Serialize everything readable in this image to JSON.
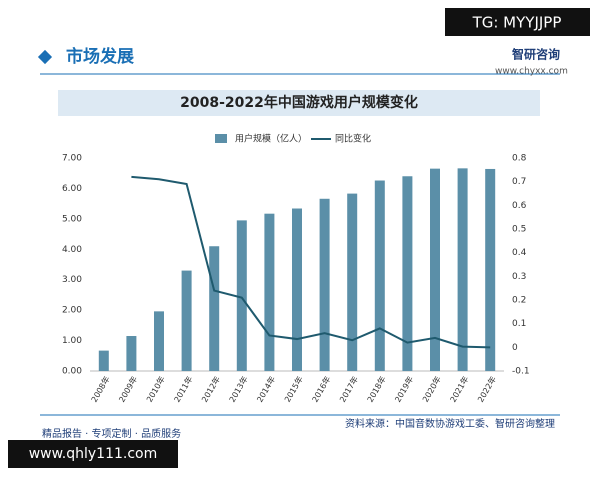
{
  "badge": "TG: MYYJJPP",
  "header": {
    "section": "市场发展",
    "brand": "智研咨询",
    "url": "www.chyxx.com"
  },
  "chart_data": {
    "type": "bar-line",
    "title": "2008-2022年中国游戏用户规模变化",
    "categories": [
      "2008年",
      "2009年",
      "2010年",
      "2011年",
      "2012年",
      "2013年",
      "2014年",
      "2015年",
      "2016年",
      "2017年",
      "2018年",
      "2019年",
      "2020年",
      "2021年",
      "2022年"
    ],
    "series": [
      {
        "name": "用户规模（亿人）",
        "type": "bar",
        "color": "#5b8fa8",
        "values": [
          0.67,
          1.15,
          1.96,
          3.3,
          4.1,
          4.95,
          5.17,
          5.34,
          5.66,
          5.83,
          6.26,
          6.4,
          6.65,
          6.66,
          6.64
        ]
      },
      {
        "name": "同比变化",
        "type": "line",
        "axis": "y2",
        "color": "#1f5a6e",
        "values": [
          null,
          0.72,
          0.71,
          0.69,
          0.24,
          0.21,
          0.05,
          0.035,
          0.06,
          0.03,
          0.08,
          0.02,
          0.04,
          0.003,
          0.0
        ]
      }
    ],
    "ylim": [
      0,
      7
    ],
    "yticks": [
      {
        "value": 0,
        "label": "0.00"
      },
      {
        "value": 1,
        "label": "1.00"
      },
      {
        "value": 2,
        "label": "2.00"
      },
      {
        "value": 3,
        "label": "3.00"
      },
      {
        "value": 4,
        "label": "4.00"
      },
      {
        "value": 5,
        "label": "5.00"
      },
      {
        "value": 6,
        "label": "6.00"
      },
      {
        "value": 7,
        "label": "7.00"
      }
    ],
    "y2lim": [
      -0.1,
      0.8
    ],
    "y2ticks": [
      -0.1,
      0,
      0.1,
      0.2,
      0.3,
      0.4,
      0.5,
      0.6,
      0.7,
      0.8
    ],
    "source": "资料来源：中国音数协游戏工委、智研咨询整理"
  },
  "footer": {
    "slogan": "精品报告 · 专项定制 · 品质服务",
    "site": "www.qhly111.com"
  }
}
